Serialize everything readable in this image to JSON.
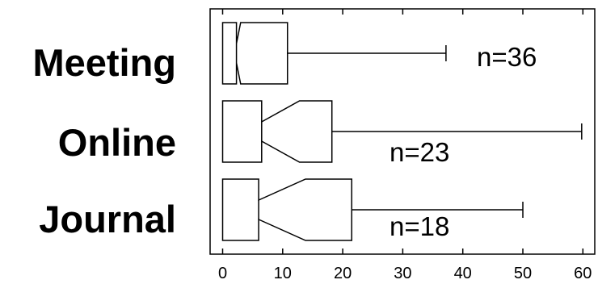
{
  "chart_data": {
    "type": "box",
    "orientation": "horizontal",
    "notched": true,
    "xlim": [
      -1.5,
      61.5
    ],
    "xticks": [
      0,
      10,
      20,
      30,
      40,
      50,
      60
    ],
    "grid": false,
    "categories": [
      {
        "label": "Meeting",
        "n_label": "n=36",
        "min": 0,
        "notch_low": 2.3,
        "q1": 0,
        "median": 2.3,
        "notch_high": 3,
        "q3": 10.8,
        "max": 37.2
      },
      {
        "label": "Online",
        "n_label": "n=23",
        "min": 0,
        "notch_low": 6.5,
        "q1": 0,
        "median": 6.5,
        "notch_high": 12.8,
        "q3": 18.2,
        "max": 59.8
      },
      {
        "label": "Journal",
        "n_label": "n=18",
        "min": 0,
        "notch_low": 6,
        "q1": 0,
        "median": 6,
        "notch_high": 13.8,
        "q3": 21.5,
        "max": 50
      }
    ]
  }
}
